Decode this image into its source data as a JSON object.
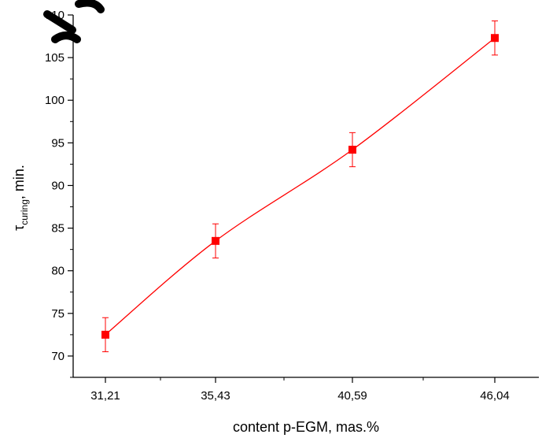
{
  "chart_data": {
    "type": "line",
    "categories": [
      "31,21",
      "35,43",
      "40,59",
      "46,04"
    ],
    "series": [
      {
        "values": [
          72.5,
          83.5,
          94.2,
          107.3
        ],
        "error": [
          2.0,
          2.0,
          2.0,
          2.0
        ],
        "color": "#ff0000",
        "marker": "square"
      }
    ],
    "xlabel": "content p-EGM, mas.%",
    "ylabel": {
      "prefix": "τ",
      "sub": "curing",
      "suffix": ", min."
    },
    "ylim": [
      67.5,
      110
    ],
    "yticks": [
      70,
      75,
      80,
      85,
      90,
      95,
      100,
      105,
      110
    ],
    "ytick_labels": [
      "70",
      "75",
      "80",
      "85",
      "90",
      "95",
      "100",
      "105",
      "110"
    ],
    "grid": false,
    "legend": "none"
  },
  "colors": {
    "series": "#ff0000",
    "axis": "#000000"
  }
}
